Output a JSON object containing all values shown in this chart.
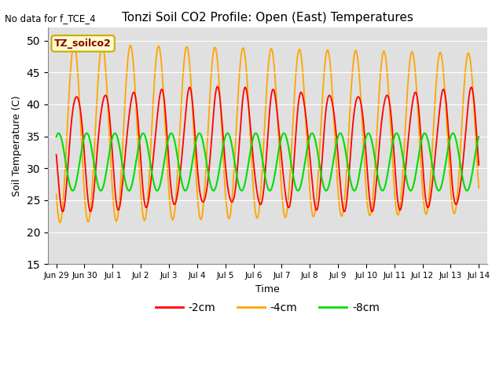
{
  "title": "Tonzi Soil CO2 Profile: Open (East) Temperatures",
  "xlabel": "Time",
  "ylabel": "Soil Temperature (C)",
  "ylim": [
    15,
    52
  ],
  "yticks": [
    15,
    20,
    25,
    30,
    35,
    40,
    45,
    50
  ],
  "note": "No data for f_TCE_4",
  "watermark": "TZ_soilco2",
  "plot_bg": "#e0e0e0",
  "fig_bg": "#ffffff",
  "line_colors": {
    "-2cm": "#ff0000",
    "-4cm": "#ffa500",
    "-8cm": "#00dd00"
  },
  "x_tick_labels": [
    "Jun 29",
    "Jun 30",
    "Jul 1",
    "Jul 2",
    "Jul 3",
    "Jul 4",
    "Jul 5",
    "Jul 6",
    "Jul 7",
    "Jul 8",
    "Jul 9",
    "Jul 10",
    "Jul 11",
    "Jul 12",
    "Jul 13",
    "Jul 14"
  ],
  "grid_color": "#ffffff",
  "watermark_bg": "#ffffcc",
  "watermark_edge": "#ccaa00",
  "watermark_text_color": "#880000"
}
